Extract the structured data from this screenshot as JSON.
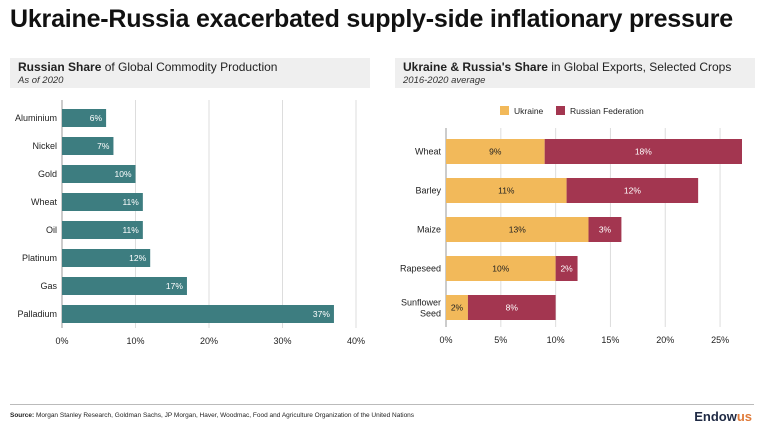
{
  "title": "Ukraine-Russia exacerbated supply-side inflationary pressure",
  "left_panel": {
    "title_bold": "Russian Share",
    "title_rest": " of Global Commodity Production",
    "subtitle": "As of 2020"
  },
  "right_panel": {
    "title_bold": "Ukraine & Russia's Share",
    "title_rest": " in Global Exports, Selected Crops",
    "subtitle": "2016-2020 average"
  },
  "chart_data": [
    {
      "type": "bar",
      "orientation": "horizontal",
      "categories": [
        "Aluminium",
        "Nickel",
        "Gold",
        "Wheat",
        "Oil",
        "Platinum",
        "Gas",
        "Palladium"
      ],
      "values": [
        6,
        7,
        10,
        11,
        11,
        12,
        17,
        37
      ],
      "value_labels": [
        "6%",
        "7%",
        "10%",
        "11%",
        "11%",
        "12%",
        "17%",
        "37%"
      ],
      "xlim": [
        0,
        40
      ],
      "xticks": [
        "0%",
        "10%",
        "20%",
        "30%",
        "40%"
      ],
      "grid": true,
      "color": "#3d7d80"
    },
    {
      "type": "bar",
      "orientation": "horizontal",
      "stacked": true,
      "categories": [
        "Wheat",
        "Barley",
        "Maize",
        "Rapeseed",
        "Sunflower Seed"
      ],
      "series": [
        {
          "name": "Ukraine",
          "values": [
            9,
            11,
            13,
            10,
            2
          ],
          "labels": [
            "9%",
            "11%",
            "13%",
            "10%",
            "2%"
          ],
          "color": "#f2b95a"
        },
        {
          "name": "Russian Federation",
          "values": [
            18,
            12,
            3,
            2,
            8
          ],
          "labels": [
            "18%",
            "12%",
            "3%",
            "2%",
            "8%"
          ],
          "color": "#a33650"
        }
      ],
      "xlim": [
        0,
        27
      ],
      "xticks": [
        "0%",
        "5%",
        "10%",
        "15%",
        "20%",
        "25%"
      ],
      "grid": true,
      "legend": "top"
    }
  ],
  "footer": {
    "source_label": "Source:",
    "source_text": " Morgan Stanley Research, Goldman Sachs, JP Morgan, Haver, Woodmac, Food and Agriculture Organization of the United Nations",
    "logo_main": "Endow",
    "logo_accent": "us"
  }
}
